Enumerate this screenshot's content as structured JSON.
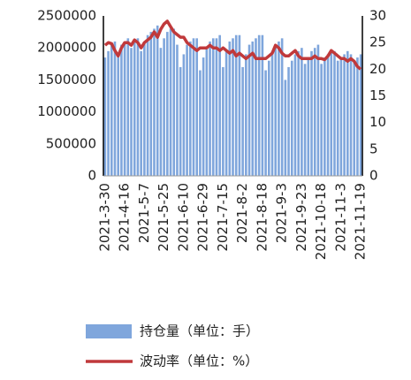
{
  "chart_data": {
    "type": "bar-line",
    "categories": [
      "2021-3-30",
      null,
      null,
      null,
      null,
      null,
      "2021-4-16",
      null,
      null,
      null,
      null,
      null,
      "2021-5-7",
      null,
      null,
      null,
      null,
      null,
      "2021-5-25",
      null,
      null,
      null,
      null,
      null,
      "2021-6-10",
      null,
      null,
      null,
      null,
      null,
      "2021-6-29",
      null,
      null,
      null,
      null,
      null,
      "2021-7-15",
      null,
      null,
      null,
      null,
      null,
      "2021-8-2",
      null,
      null,
      null,
      null,
      null,
      "2021-8-18",
      null,
      null,
      null,
      null,
      null,
      "2021-9-3",
      null,
      null,
      null,
      null,
      null,
      "2021-9-23",
      null,
      null,
      null,
      null,
      null,
      "2021-10-18",
      null,
      null,
      null,
      null,
      null,
      "2021-11-3",
      null,
      null,
      null,
      null,
      null,
      "2021-11-19"
    ],
    "series": [
      {
        "name": "持仓量（单位：手）",
        "type": "bar",
        "color": "#7fa6dc",
        "values": [
          1850000,
          1950000,
          2050000,
          2100000,
          1900000,
          2050000,
          2100000,
          2150000,
          2000000,
          2100000,
          2150000,
          1950000,
          2100000,
          2200000,
          2250000,
          2300000,
          2350000,
          2000000,
          2150000,
          2250000,
          2300000,
          2300000,
          2050000,
          1700000,
          1900000,
          2050000,
          2100000,
          2150000,
          2150000,
          1650000,
          1850000,
          2000000,
          2100000,
          2150000,
          2150000,
          2200000,
          1700000,
          1950000,
          2100000,
          2150000,
          2200000,
          2200000,
          1700000,
          1900000,
          2050000,
          2100000,
          2150000,
          2200000,
          2200000,
          1650000,
          1800000,
          1950000,
          2050000,
          2100000,
          2150000,
          1500000,
          1700000,
          1800000,
          1900000,
          1950000,
          2000000,
          1750000,
          1850000,
          1950000,
          2000000,
          2050000,
          1750000,
          1850000,
          1900000,
          1950000,
          1950000,
          1800000,
          1850000,
          1900000,
          1950000,
          1900000,
          1800000,
          1850000,
          1900000
        ]
      },
      {
        "name": "波动率（单位：%）",
        "type": "line",
        "axis": "y2",
        "color": "#c0393b",
        "values": [
          24.5,
          25,
          24.8,
          23.5,
          22.5,
          24,
          25,
          25,
          24.5,
          25.5,
          25,
          24,
          25,
          25.5,
          26,
          27,
          26,
          27.5,
          28.5,
          29,
          28,
          27,
          26.5,
          26,
          26,
          25,
          24.5,
          24,
          23.5,
          24,
          24,
          24,
          24.5,
          24,
          24,
          23.5,
          24,
          23.5,
          23,
          23.5,
          22.5,
          23,
          22.5,
          22,
          22.5,
          23,
          22,
          22,
          22,
          22,
          22.5,
          23,
          24.5,
          24,
          23,
          22.5,
          22.5,
          23,
          23.5,
          22.5,
          22,
          22,
          22,
          22,
          22.5,
          22,
          22,
          21.8,
          22.5,
          23.5,
          23,
          22.5,
          22,
          22,
          21.5,
          22,
          21.5,
          20.5,
          20
        ]
      }
    ],
    "ylim": [
      0,
      2500000
    ],
    "yticks": [
      0,
      500000,
      1000000,
      1500000,
      2000000,
      2500000
    ],
    "y2lim": [
      0,
      30
    ],
    "y2ticks": [
      0,
      5,
      10,
      15,
      20,
      25,
      30
    ]
  }
}
